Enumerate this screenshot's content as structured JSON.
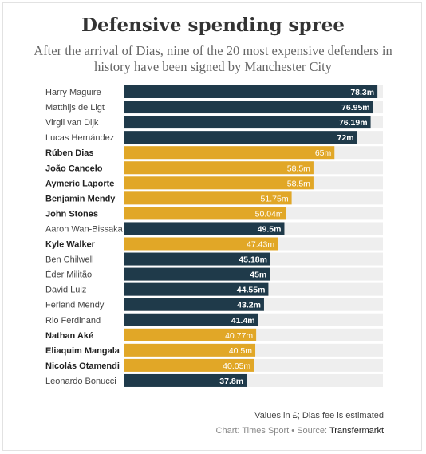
{
  "header": {
    "title": "Defensive spending spree",
    "subtitle": "After the arrival of Dias, nine of the 20 most expensive defenders in history have been signed by Manchester City"
  },
  "footer": {
    "note": "Values in £; Dias fee is estimated",
    "credit_prefix": "Chart: Times Sport • Source: ",
    "source": "Transfermarkt"
  },
  "colors": {
    "city": "#e1a727",
    "other": "#1f3a4a",
    "track": "#eeeeee"
  },
  "chart_data": {
    "type": "bar",
    "orientation": "horizontal",
    "xlim": [
      0,
      80
    ],
    "grid": false,
    "categories": [
      "Harry Maguire",
      "Matthijs de Ligt",
      "Virgil van Dijk",
      "Lucas Hernández",
      "Rúben Dias",
      "João Cancelo",
      "Aymeric Laporte",
      "Benjamin Mendy",
      "John Stones",
      "Aaron Wan-Bissaka",
      "Kyle Walker",
      "Ben Chilwell",
      "Éder Militão",
      "David Luiz",
      "Ferland Mendy",
      "Rio Ferdinand",
      "Nathan Aké",
      "Eliaquim Mangala",
      "Nicolás Otamendi",
      "Leonardo Bonucci"
    ],
    "values": [
      78.3,
      76.95,
      76.19,
      72,
      65,
      58.5,
      58.5,
      51.75,
      50.04,
      49.5,
      47.43,
      45.18,
      45,
      44.55,
      43.2,
      41.4,
      40.77,
      40.5,
      40.05,
      37.8
    ],
    "value_labels": [
      "78.3m",
      "76.95m",
      "76.19m",
      "72m",
      "65m",
      "58.5m",
      "58.5m",
      "51.75m",
      "50.04m",
      "49.5m",
      "47.43m",
      "45.18m",
      "45m",
      "44.55m",
      "43.2m",
      "41.4m",
      "40.77m",
      "40.5m",
      "40.05m",
      "37.8m"
    ],
    "man_city": [
      false,
      false,
      false,
      false,
      true,
      true,
      true,
      true,
      true,
      false,
      true,
      false,
      false,
      false,
      false,
      false,
      true,
      true,
      true,
      false
    ]
  }
}
